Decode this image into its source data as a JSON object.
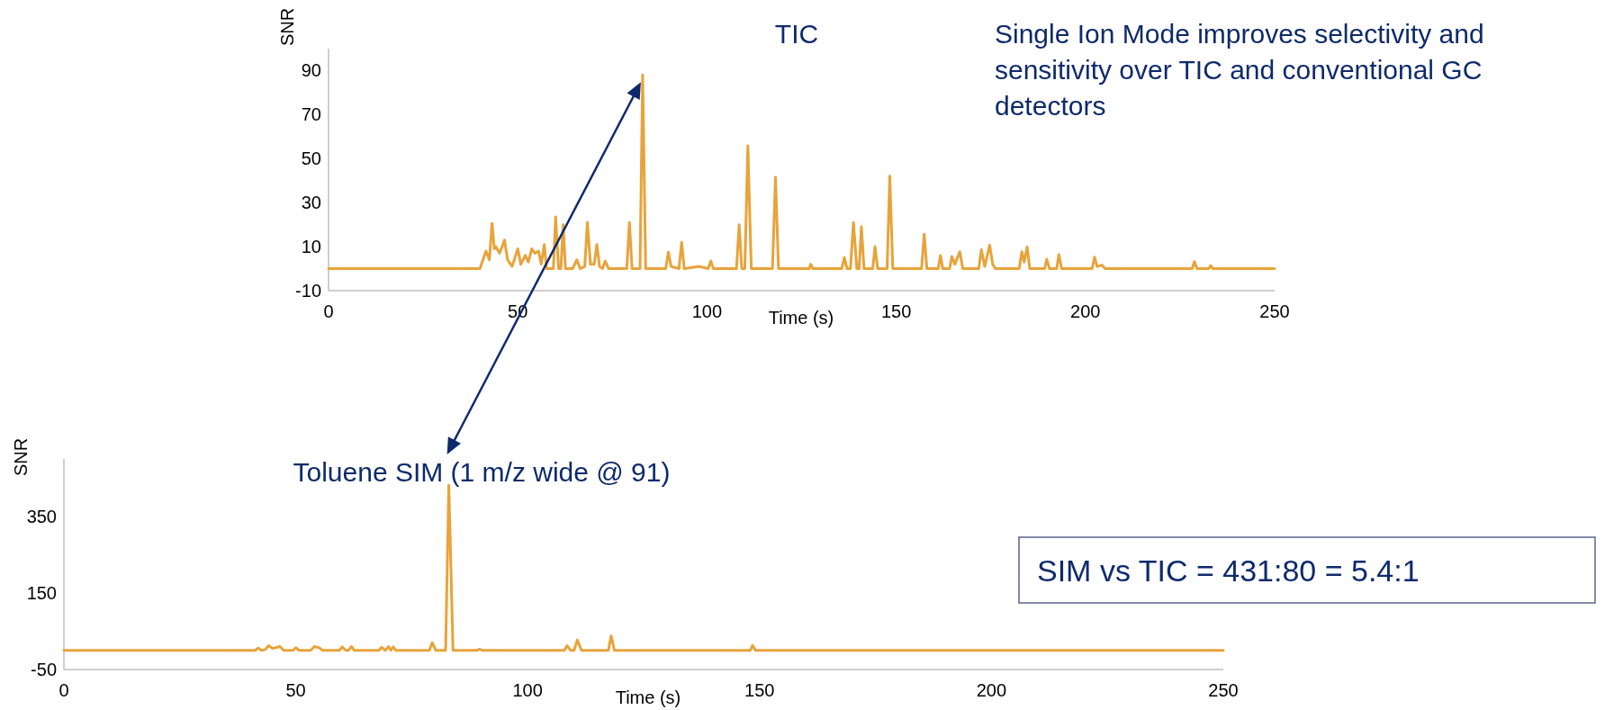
{
  "chart_data": [
    {
      "type": "line",
      "title": "TIC",
      "xlabel": "Time (s)",
      "ylabel": "SNR",
      "xlim": [
        0,
        250
      ],
      "xticks": [
        0,
        50,
        100,
        150,
        200,
        250
      ],
      "ylim": [
        -10,
        100
      ],
      "yticks": [
        -10,
        10,
        30,
        50,
        70,
        90
      ],
      "grid": false,
      "marker": "none",
      "line_style": "solid",
      "annotations": [
        "Single Ion Mode improves selectivity and sensitivity over TIC and conventional GC detectors"
      ],
      "series": [
        {
          "color": "#e8a33a",
          "x": [
            0,
            40,
            41.6,
            42.5,
            43.2,
            43.8,
            44.2,
            45.2,
            46.5,
            47.3,
            48.5,
            50,
            50.8,
            52,
            52.8,
            53.7,
            54.5,
            55.5,
            56.2,
            57,
            57.6,
            59.4,
            60,
            60.8,
            61.4,
            62,
            62.6,
            64.5,
            65.6,
            66.5,
            67.7,
            68.4,
            69.2,
            70.2,
            70.9,
            71.6,
            72.4,
            73.1,
            74,
            78.8,
            79.5,
            80.2,
            82.3,
            83,
            83.8,
            89.1,
            89.8,
            90.5,
            92.6,
            93.3,
            94,
            98,
            100.3,
            101,
            101.7,
            107.8,
            108.5,
            109.2,
            110,
            110.8,
            111.7,
            117.3,
            118.1,
            118.9,
            127,
            127.4,
            128,
            135.6,
            136.3,
            137,
            137.9,
            138.7,
            139.6,
            140.2,
            140.8,
            141.5,
            143.8,
            144.4,
            145.1,
            147.6,
            148.3,
            149.1,
            156.7,
            157.4,
            158.1,
            161.1,
            161.7,
            162.3,
            164.1,
            164.7,
            165.5,
            166.8,
            167.6,
            171.8,
            172.5,
            173.4,
            174.7,
            175.5,
            176.2,
            182.5,
            183.2,
            183.8,
            184.6,
            185.3,
            189.2,
            189.8,
            190.5,
            192.4,
            193,
            193.7,
            201.8,
            202.4,
            203.1,
            204.4,
            205.2,
            228.2,
            228.8,
            229.5,
            232.6,
            233.1,
            233.7,
            250
          ],
          "values": [
            0,
            0,
            8,
            4,
            20.6,
            9,
            10,
            7,
            13,
            4,
            1,
            9,
            2,
            6,
            3,
            9,
            7,
            8,
            2,
            11,
            0,
            0,
            23.5,
            0,
            0,
            20,
            0,
            0,
            4,
            0,
            1,
            21,
            2,
            2,
            11,
            1,
            0,
            3.5,
            0,
            0,
            21,
            0,
            0,
            88,
            0,
            0,
            7.5,
            1,
            0,
            12,
            0,
            1,
            0,
            3.5,
            0,
            0,
            20,
            0,
            0,
            55.8,
            0,
            0,
            41.5,
            0,
            0,
            2,
            0,
            0,
            5,
            0,
            0,
            21,
            0,
            0,
            19,
            0,
            0,
            10,
            0,
            0,
            42,
            0,
            0,
            15.7,
            0,
            0,
            6,
            0,
            0,
            5.5,
            2,
            7.7,
            0,
            0,
            8.6,
            1,
            10.7,
            2,
            0,
            0,
            7.7,
            3,
            9.8,
            0,
            0,
            4.3,
            0,
            0,
            6.4,
            0,
            0,
            5.2,
            1,
            1.6,
            0,
            0,
            3.2,
            0,
            0,
            1.4,
            0,
            0
          ]
        }
      ]
    },
    {
      "type": "line",
      "title": "Toluene SIM (1 m/z wide @ 91)",
      "xlabel": "Time (s)",
      "ylabel": "SNR",
      "xlim": [
        0,
        250
      ],
      "xticks": [
        0,
        50,
        100,
        150,
        200,
        250
      ],
      "ylim": [
        -50,
        500
      ],
      "yticks": [
        -50,
        150,
        350
      ],
      "grid": false,
      "marker": "none",
      "line_style": "solid",
      "annotations": [
        "SIM vs TIC = 431:80 = 5.4:1"
      ],
      "series": [
        {
          "color": "#e8a33a",
          "x": [
            0,
            41.2,
            41.9,
            42.6,
            43.4,
            44.1,
            45,
            46.6,
            47.4,
            49.4,
            50,
            50.7,
            53.2,
            54,
            55,
            55.8,
            59.4,
            60,
            60.8,
            61.4,
            62,
            62.6,
            67.9,
            68.5,
            69.3,
            70,
            70.5,
            71,
            71.6,
            78.8,
            79.4,
            80.2,
            82.3,
            83,
            83.9,
            89.1,
            89.6,
            90.2,
            107.9,
            108.5,
            109.3,
            110,
            110.7,
            111.6,
            117.4,
            118,
            118.7,
            148,
            148.5,
            149.1,
            250
          ],
          "values": [
            0,
            0,
            6,
            0,
            2,
            12,
            5,
            10,
            0,
            0,
            7,
            0,
            0,
            10,
            7,
            0,
            0,
            9,
            0,
            0,
            10,
            0,
            0,
            8,
            0,
            10,
            0,
            9,
            0,
            0,
            20,
            0,
            0,
            431,
            0,
            0,
            3,
            0,
            0,
            12,
            0,
            0,
            27,
            0,
            0,
            38,
            0,
            0,
            13,
            0,
            0
          ]
        }
      ]
    }
  ]
}
